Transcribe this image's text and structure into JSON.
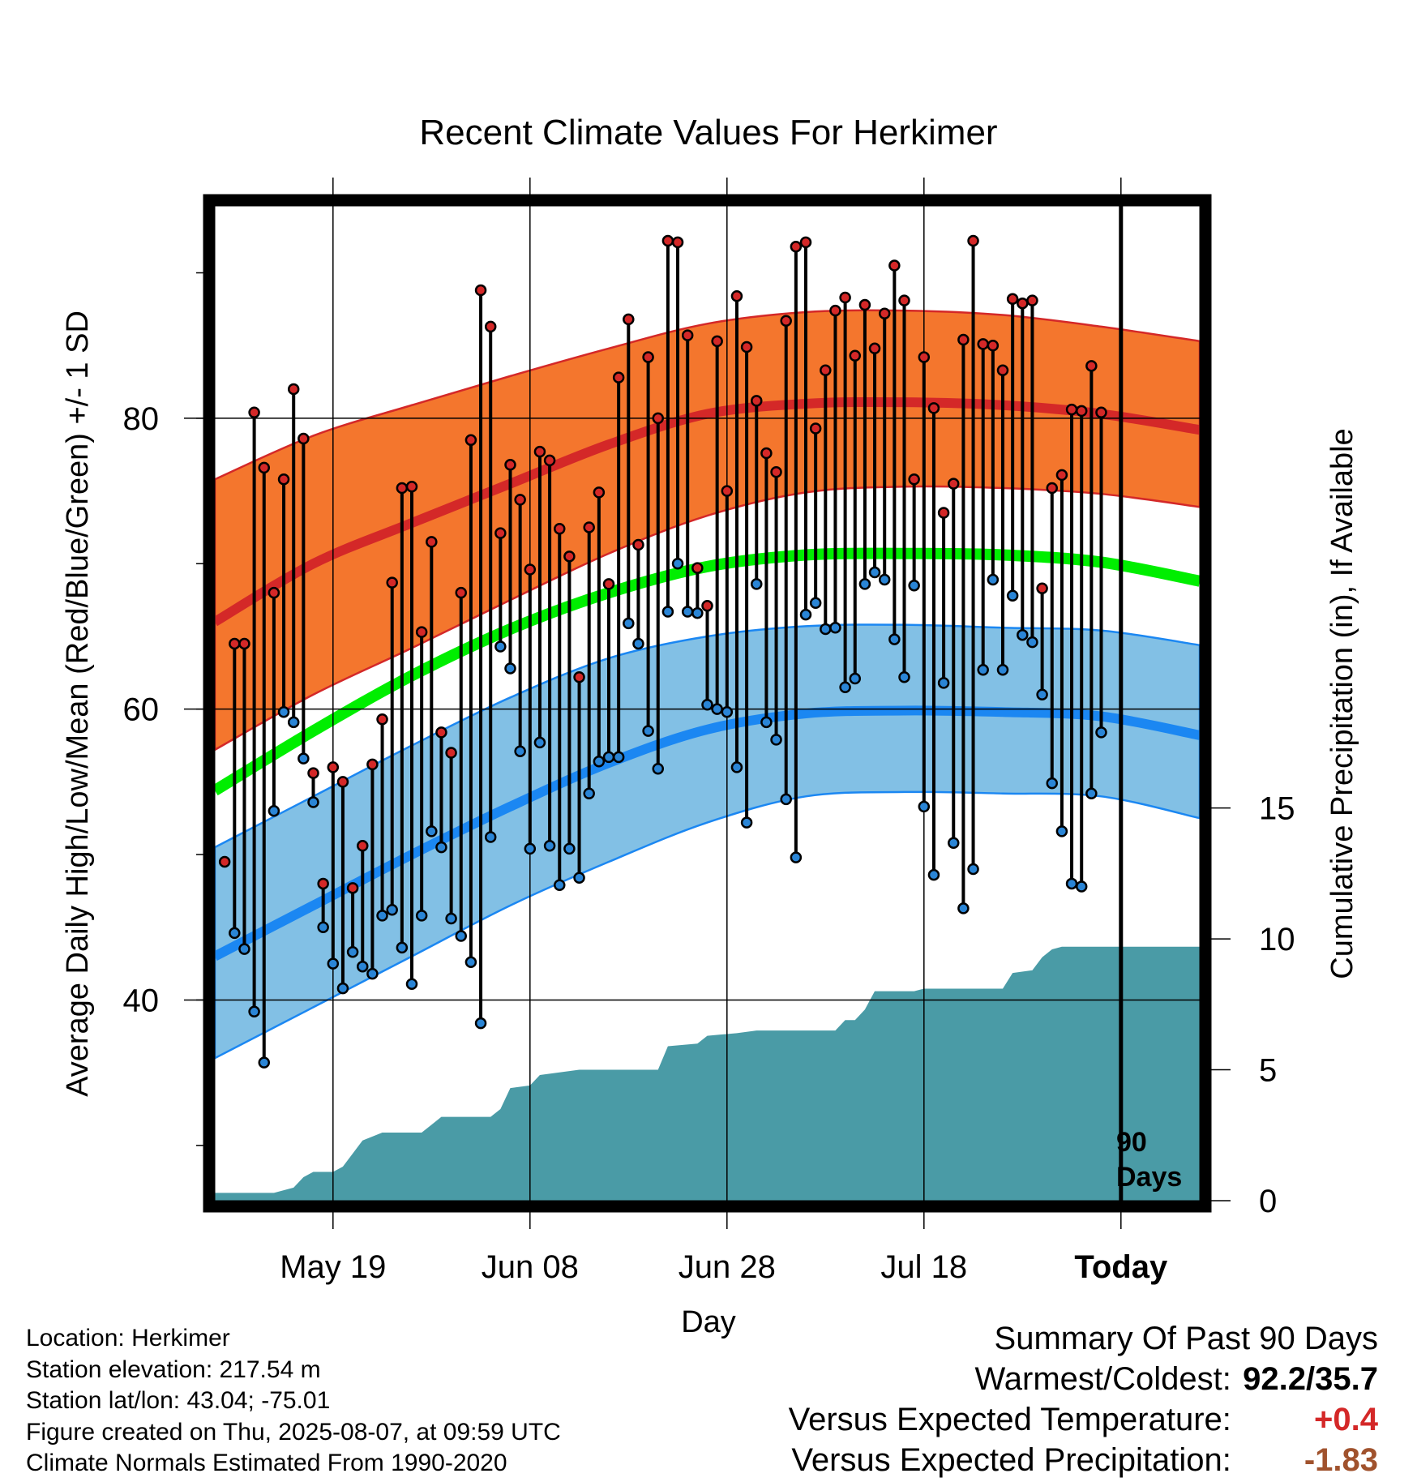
{
  "title": "Recent Climate Values For Herkimer",
  "chart_data": {
    "type": "line",
    "title": "Recent Climate Values For Herkimer",
    "xlabel": "Day",
    "ylabel": "Average Daily High/Low/Mean (Red/Blue/Green) +/- 1 SD",
    "y2label": "Cumulative Precipitation (in), If Available",
    "x_ticks": [
      "May 19",
      "Jun 08",
      "Jun 28",
      "Jul 18",
      "Today"
    ],
    "y_ticks": [
      40,
      60,
      80
    ],
    "y2_ticks": [
      0,
      5,
      10,
      15
    ],
    "ylim": [
      26.2,
      94.6
    ],
    "y2lim": [
      0,
      38
    ],
    "xlim": [
      -1,
      99
    ],
    "today_marker": {
      "label_line1": "90",
      "label_line2": "Days"
    },
    "normal_high": {
      "x": [
        -1,
        9,
        19,
        29,
        39,
        49,
        59,
        69,
        79,
        89,
        99
      ],
      "mean": [
        66,
        70,
        72.8,
        75.5,
        78.2,
        80.3,
        81,
        81.1,
        80.9,
        80.3,
        79.2
      ],
      "upper": [
        75.8,
        78.8,
        80.9,
        82.9,
        84.8,
        86.5,
        87.3,
        87.4,
        87.1,
        86.3,
        85.3
      ],
      "lower": [
        57.2,
        61,
        64.2,
        67.5,
        70.7,
        73.3,
        74.9,
        75.3,
        75.2,
        74.8,
        73.9
      ]
    },
    "normal_low": {
      "x": [
        -1,
        9,
        19,
        29,
        39,
        49,
        59,
        69,
        79,
        89,
        99
      ],
      "mean": [
        43,
        46.5,
        50,
        53.3,
        56.3,
        58.6,
        59.7,
        59.9,
        59.8,
        59.5,
        58.2
      ],
      "upper": [
        50.5,
        54,
        57.5,
        60.8,
        63.5,
        65,
        65.7,
        65.8,
        65.6,
        65.4,
        64.4
      ],
      "lower": [
        36,
        39.5,
        43,
        46.5,
        49.5,
        52.2,
        54,
        54.3,
        54.2,
        54,
        52.5
      ]
    },
    "normal_mean": {
      "x": [
        -1,
        9,
        19,
        29,
        39,
        49,
        59,
        69,
        79,
        89,
        99
      ],
      "values": [
        54.4,
        58.5,
        62.3,
        65.5,
        68,
        69.8,
        70.6,
        70.7,
        70.6,
        70.1,
        68.8
      ]
    },
    "daily_high": [
      64.5,
      64.5,
      80.4,
      76.6,
      68,
      75.8,
      82,
      78.6,
      55.6,
      48,
      56,
      55,
      47.7,
      50.6,
      56.2,
      59.3,
      68.7,
      75.2,
      75.3,
      65.3,
      71.5,
      58.4,
      57,
      68,
      78.5,
      88.8,
      86.3,
      72.1,
      76.8,
      74.4,
      69.6,
      77.7,
      77.1,
      72.4,
      70.5,
      62.2,
      72.5,
      74.9,
      68.6,
      82.8,
      86.8,
      71.3,
      84.2,
      80,
      92.2,
      92.1,
      85.7,
      69.7,
      67.1,
      85.3,
      75,
      88.4,
      84.9,
      81.2,
      77.6,
      76.3,
      86.7,
      91.8,
      92.1,
      79.3,
      83.3,
      87.4,
      88.3,
      84.3,
      87.8,
      84.8,
      87.2,
      90.5,
      88.1,
      75.8,
      84.2,
      80.7,
      73.5,
      75.5,
      85.4,
      92.2,
      85.1,
      85,
      83.3,
      88.2,
      87.9,
      88.1,
      68.3,
      75.2,
      76.1,
      80.6,
      80.5,
      83.6,
      80.4
    ],
    "daily_low": [
      44.6,
      43.5,
      39.2,
      35.7,
      53,
      59.8,
      59.1,
      56.6,
      53.6,
      45,
      42.5,
      40.8,
      43.3,
      42.3,
      41.8,
      45.8,
      46.2,
      43.6,
      41.1,
      45.8,
      51.6,
      50.5,
      45.6,
      44.4,
      42.6,
      38.4,
      51.2,
      64.3,
      62.8,
      57.1,
      50.4,
      57.7,
      50.6,
      47.9,
      50.4,
      48.4,
      54.2,
      56.4,
      56.7,
      56.7,
      65.9,
      64.5,
      58.5,
      55.9,
      66.7,
      70,
      66.7,
      66.6,
      60.3,
      60,
      59.8,
      56,
      52.2,
      68.6,
      59.1,
      57.9,
      53.8,
      49.8,
      66.5,
      67.3,
      65.5,
      65.6,
      61.5,
      62.1,
      68.6,
      69.4,
      68.9,
      64.8,
      62.2,
      68.5,
      53.3,
      48.6,
      61.8,
      50.8,
      46.3,
      49,
      62.7,
      68.9,
      62.7,
      67.8,
      65.1,
      64.6,
      61,
      54.9,
      51.6,
      48,
      47.8,
      54.2,
      58.4,
      62.6
    ],
    "first_day_low": 49.5,
    "cumulative_precip": [
      {
        "x": -1,
        "y": 0.3
      },
      {
        "x": 5,
        "y": 0.3
      },
      {
        "x": 7,
        "y": 0.5
      },
      {
        "x": 8,
        "y": 0.9
      },
      {
        "x": 9,
        "y": 1.1
      },
      {
        "x": 11,
        "y": 1.1
      },
      {
        "x": 12,
        "y": 1.3
      },
      {
        "x": 13,
        "y": 1.8
      },
      {
        "x": 14,
        "y": 2.3
      },
      {
        "x": 16,
        "y": 2.6
      },
      {
        "x": 20,
        "y": 2.6
      },
      {
        "x": 21,
        "y": 2.9
      },
      {
        "x": 22,
        "y": 3.2
      },
      {
        "x": 27,
        "y": 3.2
      },
      {
        "x": 28,
        "y": 3.5
      },
      {
        "x": 29,
        "y": 4.3
      },
      {
        "x": 31,
        "y": 4.4
      },
      {
        "x": 32,
        "y": 4.8
      },
      {
        "x": 34,
        "y": 4.9
      },
      {
        "x": 36,
        "y": 5.0
      },
      {
        "x": 44,
        "y": 5.0
      },
      {
        "x": 45,
        "y": 5.9
      },
      {
        "x": 48,
        "y": 6.0
      },
      {
        "x": 49,
        "y": 6.3
      },
      {
        "x": 52,
        "y": 6.4
      },
      {
        "x": 54,
        "y": 6.5
      },
      {
        "x": 62,
        "y": 6.5
      },
      {
        "x": 63,
        "y": 6.9
      },
      {
        "x": 64,
        "y": 6.9
      },
      {
        "x": 65,
        "y": 7.3
      },
      {
        "x": 66,
        "y": 8.0
      },
      {
        "x": 70,
        "y": 8.0
      },
      {
        "x": 71,
        "y": 8.1
      },
      {
        "x": 79,
        "y": 8.1
      },
      {
        "x": 80,
        "y": 8.7
      },
      {
        "x": 82,
        "y": 8.8
      },
      {
        "x": 83,
        "y": 9.3
      },
      {
        "x": 84,
        "y": 9.6
      },
      {
        "x": 85,
        "y": 9.7
      },
      {
        "x": 99,
        "y": 9.7
      }
    ]
  },
  "footer": {
    "location": "Location: Herkimer",
    "elevation": "Station elevation: 217.54 m",
    "latlon": "Station lat/lon: 43.04; -75.01",
    "created": "Figure created on Thu, 2025-08-07, at 09:59 UTC",
    "normals": "Climate Normals Estimated From 1990-2020"
  },
  "summary": {
    "heading": "Summary Of Past 90 Days",
    "warmest_label": "Warmest/Coldest:",
    "warmest_value": "92.2/35.7",
    "temp_label": "Versus Expected Temperature:",
    "temp_value": "+0.4",
    "precip_label": "Versus Expected Precipitation:",
    "precip_value": "-1.83"
  },
  "colors": {
    "high_band": "#f4762d",
    "high_line": "#d42828",
    "low_band": "#82c0e5",
    "low_line": "#1b87f2",
    "mean_line": "#00ee00",
    "precip": "#4a9ba6",
    "high_dot": "#d42828",
    "low_dot": "#2a85d6",
    "temp_value": "#d42828",
    "precip_value": "#a0522d"
  }
}
